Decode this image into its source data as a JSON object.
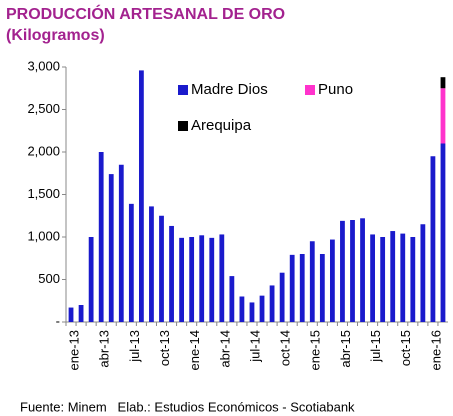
{
  "chart_data": {
    "type": "stacked_bar",
    "title": "PRODUCCIÓN ARTESANAL DE ORO",
    "subtitle": "(Kilogramos)",
    "source": "Fuente: Minem   Elab.: Estudios Económicos - Scotiabank",
    "categories": [
      "ene-13",
      null,
      null,
      "abr-13",
      null,
      null,
      "jul-13",
      null,
      null,
      "oct-13",
      null,
      null,
      "ene-14",
      null,
      null,
      "abr-14",
      null,
      null,
      "jul-14",
      null,
      null,
      "oct-14",
      null,
      null,
      "ene-15",
      null,
      null,
      "abr-15",
      null,
      null,
      "jul-15",
      null,
      null,
      "oct-15",
      null,
      null,
      "ene-16",
      null
    ],
    "series": [
      {
        "name": "Madre Dios",
        "color": "#1a1acc",
        "values": [
          170,
          200,
          1000,
          2000,
          1740,
          1850,
          1390,
          2960,
          1360,
          1250,
          1130,
          990,
          1000,
          1020,
          990,
          1030,
          540,
          300,
          230,
          310,
          430,
          580,
          790,
          800,
          950,
          800,
          970,
          1190,
          1200,
          1220,
          1030,
          1000,
          1070,
          1040,
          1000,
          1150,
          1950,
          2100
        ]
      },
      {
        "name": "Puno",
        "color": "#ff33cc",
        "values": [
          0,
          0,
          0,
          0,
          0,
          0,
          0,
          0,
          0,
          0,
          0,
          0,
          0,
          0,
          0,
          0,
          0,
          0,
          0,
          0,
          0,
          0,
          0,
          0,
          0,
          0,
          0,
          0,
          0,
          0,
          0,
          0,
          0,
          0,
          0,
          0,
          0,
          650
        ]
      },
      {
        "name": "Arequipa",
        "color": "#000000",
        "values": [
          0,
          0,
          0,
          0,
          0,
          0,
          0,
          0,
          0,
          0,
          0,
          0,
          0,
          0,
          0,
          0,
          0,
          0,
          0,
          0,
          0,
          0,
          0,
          0,
          0,
          0,
          0,
          0,
          0,
          0,
          0,
          0,
          0,
          0,
          0,
          0,
          0,
          130
        ]
      }
    ],
    "ylim": [
      0,
      3000
    ],
    "yticks": [
      {
        "value": 0,
        "label": "-"
      },
      500,
      {
        "value": 1000,
        "label": "1,000"
      },
      {
        "value": 1500,
        "label": "1,500"
      },
      {
        "value": 2000,
        "label": "2,000"
      },
      {
        "value": 2500,
        "label": "2,500"
      },
      {
        "value": 3000,
        "label": "3,000"
      }
    ],
    "grid": false,
    "legend": "top"
  }
}
